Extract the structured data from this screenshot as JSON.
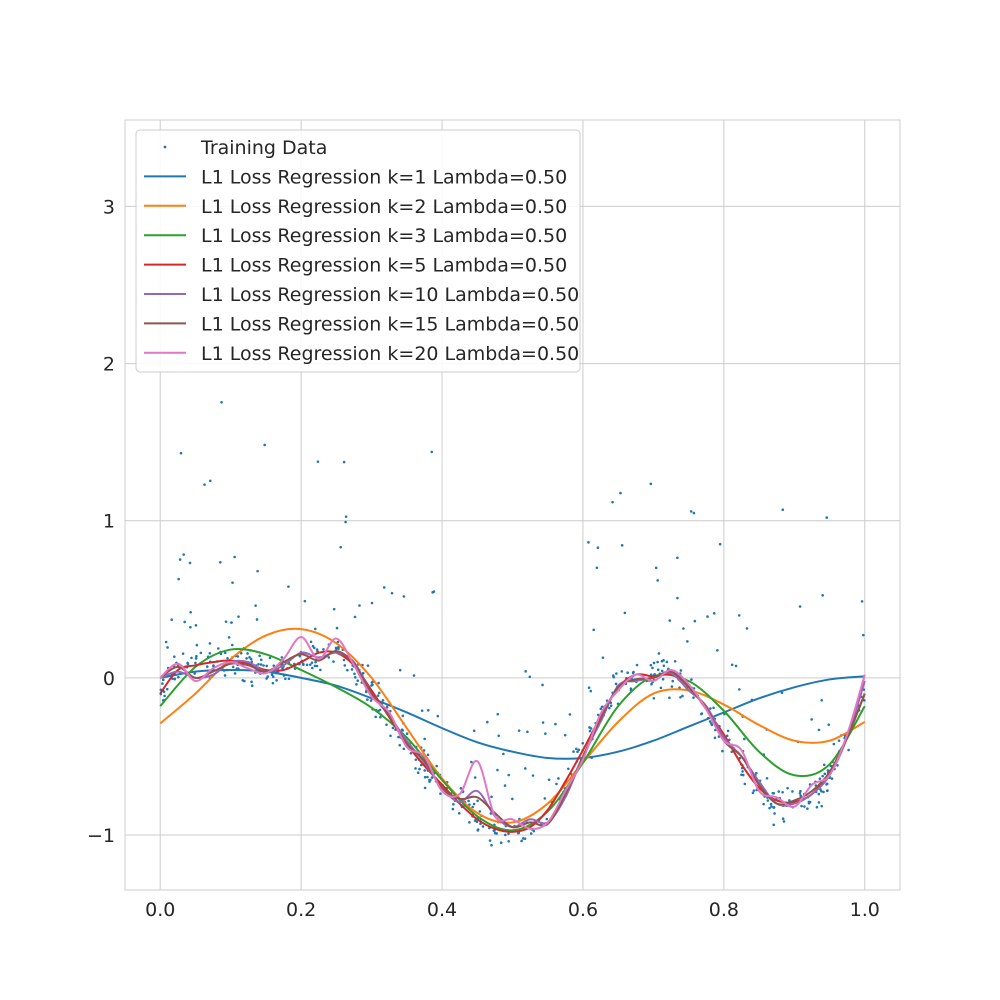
{
  "chart_data": {
    "type": "scatter",
    "title": "",
    "xlabel": "",
    "ylabel": "",
    "xlim": [
      -0.05,
      1.05
    ],
    "ylim": [
      -1.35,
      3.55
    ],
    "xticks": [
      0.0,
      0.2,
      0.4,
      0.6,
      0.8,
      1.0
    ],
    "xtick_labels": [
      "0.0",
      "0.2",
      "0.4",
      "0.6",
      "0.8",
      "1.0"
    ],
    "yticks": [
      -1,
      0,
      1,
      2,
      3
    ],
    "ytick_labels": [
      "−1",
      "0",
      "1",
      "2",
      "3"
    ],
    "grid": true,
    "legend_position": "top-left",
    "training_data": {
      "name": "Training Data",
      "color": "#1f77b4",
      "count": 700,
      "description_function": "sin-like curve with noise"
    },
    "series": [
      {
        "name": "L1 Loss Regression k=1 Lambda=0.50",
        "color": "#1f77b4",
        "x": [
          0.0,
          0.05,
          0.1,
          0.15,
          0.2,
          0.25,
          0.3,
          0.35,
          0.4,
          0.45,
          0.5,
          0.55,
          0.6,
          0.65,
          0.7,
          0.75,
          0.8,
          0.85,
          0.9,
          0.95,
          1.0
        ],
        "y": [
          0.0,
          0.04,
          0.05,
          0.04,
          0.0,
          -0.05,
          -0.13,
          -0.22,
          -0.32,
          -0.41,
          -0.47,
          -0.51,
          -0.51,
          -0.47,
          -0.4,
          -0.31,
          -0.22,
          -0.13,
          -0.06,
          -0.01,
          0.01
        ]
      },
      {
        "name": "L1 Loss Regression k=2 Lambda=0.50",
        "color": "#ff7f0e",
        "x": [
          0.0,
          0.05,
          0.1,
          0.15,
          0.2,
          0.25,
          0.3,
          0.35,
          0.4,
          0.45,
          0.5,
          0.55,
          0.6,
          0.65,
          0.7,
          0.75,
          0.8,
          0.85,
          0.9,
          0.95,
          1.0
        ],
        "y": [
          -0.29,
          -0.1,
          0.12,
          0.27,
          0.31,
          0.22,
          0.0,
          -0.32,
          -0.64,
          -0.86,
          -0.92,
          -0.8,
          -0.54,
          -0.28,
          -0.1,
          -0.08,
          -0.17,
          -0.3,
          -0.4,
          -0.4,
          -0.28
        ]
      },
      {
        "name": "L1 Loss Regression k=3 Lambda=0.50",
        "color": "#2ca02c",
        "x": [
          0.0,
          0.05,
          0.1,
          0.15,
          0.2,
          0.25,
          0.3,
          0.35,
          0.4,
          0.45,
          0.5,
          0.55,
          0.6,
          0.65,
          0.7,
          0.75,
          0.8,
          0.85,
          0.9,
          0.95,
          1.0
        ],
        "y": [
          -0.18,
          0.07,
          0.18,
          0.15,
          0.05,
          -0.06,
          -0.19,
          -0.38,
          -0.65,
          -0.88,
          -0.97,
          -0.85,
          -0.54,
          -0.18,
          0.01,
          -0.02,
          -0.21,
          -0.47,
          -0.62,
          -0.55,
          -0.18
        ]
      },
      {
        "name": "L1 Loss Regression k=5 Lambda=0.50",
        "color": "#d62728",
        "x": [
          0.0,
          0.025,
          0.05,
          0.075,
          0.1,
          0.125,
          0.15,
          0.175,
          0.2,
          0.225,
          0.25,
          0.275,
          0.3,
          0.325,
          0.35,
          0.375,
          0.4,
          0.425,
          0.45,
          0.475,
          0.5,
          0.525,
          0.55,
          0.575,
          0.6,
          0.625,
          0.65,
          0.675,
          0.7,
          0.725,
          0.75,
          0.775,
          0.8,
          0.825,
          0.85,
          0.875,
          0.9,
          0.925,
          0.95,
          0.975,
          1.0
        ],
        "y": [
          -0.1,
          0.05,
          0.08,
          0.1,
          0.11,
          0.09,
          0.05,
          0.05,
          0.1,
          0.16,
          0.16,
          0.08,
          -0.08,
          -0.25,
          -0.42,
          -0.56,
          -0.68,
          -0.8,
          -0.9,
          -0.96,
          -0.98,
          -0.95,
          -0.84,
          -0.66,
          -0.46,
          -0.25,
          -0.06,
          0.02,
          0.01,
          0.02,
          -0.05,
          -0.2,
          -0.36,
          -0.55,
          -0.7,
          -0.78,
          -0.79,
          -0.74,
          -0.6,
          -0.38,
          -0.1
        ]
      },
      {
        "name": "L1 Loss Regression k=10 Lambda=0.50",
        "color": "#9467bd",
        "x": [
          0.0,
          0.025,
          0.05,
          0.075,
          0.1,
          0.125,
          0.15,
          0.175,
          0.2,
          0.225,
          0.25,
          0.275,
          0.3,
          0.325,
          0.35,
          0.375,
          0.4,
          0.425,
          0.45,
          0.475,
          0.5,
          0.525,
          0.55,
          0.575,
          0.6,
          0.625,
          0.65,
          0.675,
          0.7,
          0.725,
          0.75,
          0.775,
          0.8,
          0.825,
          0.85,
          0.875,
          0.9,
          0.925,
          0.95,
          0.975,
          1.0
        ],
        "y": [
          0.0,
          0.04,
          0.0,
          0.02,
          0.1,
          0.1,
          0.04,
          0.08,
          0.16,
          0.13,
          0.16,
          0.1,
          -0.1,
          -0.24,
          -0.4,
          -0.54,
          -0.7,
          -0.79,
          -0.72,
          -0.88,
          -0.95,
          -0.9,
          -0.92,
          -0.76,
          -0.5,
          -0.28,
          -0.05,
          -0.02,
          0.0,
          0.03,
          -0.08,
          -0.18,
          -0.38,
          -0.5,
          -0.66,
          -0.8,
          -0.8,
          -0.74,
          -0.62,
          -0.38,
          -0.02
        ]
      },
      {
        "name": "L1 Loss Regression k=15 Lambda=0.50",
        "color": "#8c564b",
        "x": [
          0.0,
          0.025,
          0.05,
          0.075,
          0.1,
          0.125,
          0.15,
          0.175,
          0.2,
          0.225,
          0.25,
          0.275,
          0.3,
          0.325,
          0.35,
          0.375,
          0.4,
          0.425,
          0.45,
          0.475,
          0.5,
          0.525,
          0.55,
          0.575,
          0.6,
          0.625,
          0.65,
          0.675,
          0.7,
          0.725,
          0.75,
          0.775,
          0.8,
          0.825,
          0.85,
          0.875,
          0.9,
          0.925,
          0.95,
          0.975,
          1.0
        ],
        "y": [
          0.0,
          0.07,
          0.0,
          0.04,
          0.09,
          0.08,
          0.04,
          0.1,
          0.15,
          0.11,
          0.17,
          0.09,
          -0.1,
          -0.24,
          -0.42,
          -0.53,
          -0.7,
          -0.77,
          -0.76,
          -0.86,
          -0.95,
          -0.92,
          -0.93,
          -0.74,
          -0.5,
          -0.26,
          -0.06,
          -0.01,
          0.0,
          0.04,
          -0.06,
          -0.19,
          -0.4,
          -0.5,
          -0.68,
          -0.8,
          -0.78,
          -0.72,
          -0.6,
          -0.38,
          -0.1
        ]
      },
      {
        "name": "L1 Loss Regression k=20 Lambda=0.50",
        "color": "#e377c2",
        "x": [
          0.0,
          0.025,
          0.05,
          0.075,
          0.1,
          0.125,
          0.15,
          0.175,
          0.2,
          0.225,
          0.25,
          0.275,
          0.3,
          0.325,
          0.35,
          0.375,
          0.4,
          0.425,
          0.45,
          0.475,
          0.5,
          0.525,
          0.55,
          0.575,
          0.6,
          0.625,
          0.65,
          0.675,
          0.7,
          0.725,
          0.75,
          0.775,
          0.8,
          0.825,
          0.85,
          0.875,
          0.9,
          0.925,
          0.95,
          0.975,
          1.0
        ],
        "y": [
          0.0,
          0.09,
          -0.02,
          0.06,
          0.1,
          0.06,
          0.03,
          0.12,
          0.26,
          0.12,
          0.25,
          0.08,
          -0.12,
          -0.22,
          -0.44,
          -0.5,
          -0.72,
          -0.74,
          -0.53,
          -0.88,
          -0.9,
          -0.96,
          -0.92,
          -0.72,
          -0.52,
          -0.23,
          -0.08,
          0.02,
          -0.02,
          0.05,
          -0.04,
          -0.2,
          -0.4,
          -0.46,
          -0.72,
          -0.76,
          -0.82,
          -0.68,
          -0.62,
          -0.36,
          0.02
        ]
      }
    ]
  }
}
